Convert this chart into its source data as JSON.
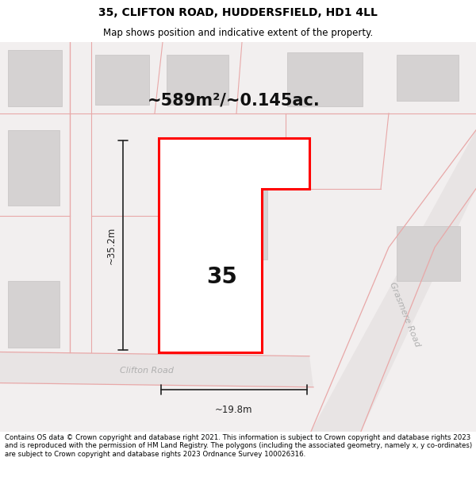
{
  "title": "35, CLIFTON ROAD, HUDDERSFIELD, HD1 4LL",
  "subtitle": "Map shows position and indicative extent of the property.",
  "area_label": "~589m²/~0.145ac.",
  "plot_number": "35",
  "dim_width": "~19.8m",
  "dim_height": "~35.2m",
  "road_label_1": "Clifton Road",
  "road_label_2": "Grasmere Road",
  "footer": "Contains OS data © Crown copyright and database right 2021. This information is subject to Crown copyright and database rights 2023 and is reproduced with the permission of HM Land Registry. The polygons (including the associated geometry, namely x, y co-ordinates) are subject to Crown copyright and database rights 2023 Ordnance Survey 100026316.",
  "bg_color": "#ffffff",
  "map_bg": "#f2efef",
  "plot_fill": "#ffffff",
  "plot_edge": "#ff0000",
  "building_fill": "#d5d2d2",
  "road_fill": "#e8e4e4",
  "road_line_color": "#e8a8a8",
  "dim_color": "#222222",
  "road_label_color": "#b0b0b0",
  "title_fontsize": 10,
  "subtitle_fontsize": 8.5,
  "area_fontsize": 15,
  "plot_num_fontsize": 20,
  "dim_fontsize": 8.5,
  "road_fontsize": 8
}
